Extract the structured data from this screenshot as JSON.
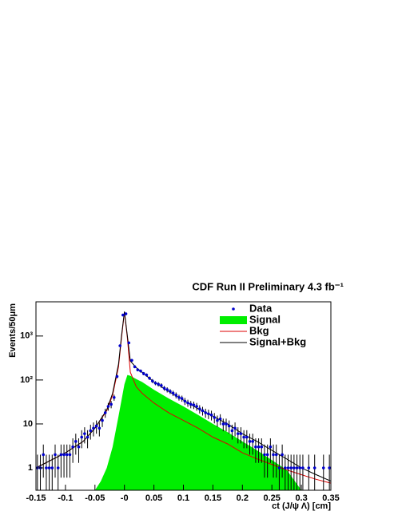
{
  "chart_data": {
    "type": "line",
    "title": "CDF Run II Preliminary 4.3 fb⁻¹",
    "x_label": "ct (J/ψ Λ) [cm]",
    "y_label": "Events/50μm",
    "log_y": true,
    "legend": "top-right",
    "xlim": [
      -0.15,
      0.35
    ],
    "xticks": [
      -0.15,
      -0.1,
      -0.05,
      {
        "value": 0,
        "label": "-0"
      },
      0.05,
      0.1,
      0.15,
      0.2,
      0.25,
      0.3,
      0.35
    ],
    "ylim": [
      0.31,
      6000
    ],
    "yticks": [
      1,
      10,
      {
        "value": 100,
        "label": "10²"
      },
      {
        "value": 1000,
        "label": "10³"
      }
    ],
    "series": [
      {
        "name": "Data",
        "kind": "points",
        "color": "#0000cc",
        "x": [
          -0.1475,
          -0.1425,
          -0.1375,
          -0.1325,
          -0.1275,
          -0.1225,
          -0.1175,
          -0.1125,
          -0.1075,
          -0.1025,
          -0.0975,
          -0.0925,
          -0.0875,
          -0.0825,
          -0.0775,
          -0.0725,
          -0.0675,
          -0.0625,
          -0.0575,
          -0.0525,
          -0.0475,
          -0.0425,
          -0.0375,
          -0.0325,
          -0.0275,
          -0.0225,
          -0.0175,
          -0.0125,
          -0.0075,
          -0.0025,
          0.0025,
          0.0075,
          0.0125,
          0.0175,
          0.0225,
          0.0275,
          0.0325,
          0.0375,
          0.0425,
          0.0475,
          0.0525,
          0.0575,
          0.0625,
          0.0675,
          0.0725,
          0.0775,
          0.0825,
          0.0875,
          0.0925,
          0.0975,
          0.1025,
          0.1075,
          0.1125,
          0.1175,
          0.1225,
          0.1275,
          0.1325,
          0.1375,
          0.1425,
          0.1475,
          0.1525,
          0.1575,
          0.1625,
          0.1675,
          0.1725,
          0.1775,
          0.1825,
          0.1875,
          0.1925,
          0.1975,
          0.2025,
          0.2075,
          0.2125,
          0.2175,
          0.2225,
          0.2275,
          0.2325,
          0.2375,
          0.2425,
          0.2475,
          0.2525,
          0.2575,
          0.2625,
          0.2675,
          0.2725,
          0.2775,
          0.2825,
          0.2875,
          0.2925,
          0.2975,
          0.3025,
          0.3075,
          0.3125,
          0.3175,
          0.3225,
          0.3275,
          0.3325,
          0.3375,
          0.3425,
          0.3475
        ],
        "values": [
          1,
          1,
          2,
          1,
          1,
          1,
          2,
          1,
          2,
          2,
          2,
          2,
          3,
          4,
          3,
          5,
          6,
          5,
          7,
          8,
          9,
          8,
          12,
          18,
          25,
          28,
          40,
          120,
          600,
          3000,
          3200,
          700,
          280,
          200,
          170,
          160,
          140,
          130,
          110,
          95,
          85,
          80,
          75,
          65,
          60,
          55,
          50,
          45,
          40,
          38,
          33,
          30,
          28,
          27,
          25,
          22,
          20,
          18,
          17,
          16,
          14,
          12,
          13,
          10,
          10,
          9,
          7,
          8,
          6,
          6,
          5,
          5,
          4,
          4,
          3,
          3,
          3,
          2,
          2,
          3,
          2,
          2,
          1,
          2,
          1,
          1,
          1,
          1,
          1,
          1,
          1,
          null,
          1,
          null,
          1,
          null,
          null,
          1,
          null,
          1
        ],
        "errors": [
          1,
          1,
          1.4,
          1,
          1,
          1,
          1.4,
          1,
          1.4,
          1.4,
          1.4,
          1.4,
          1.7,
          2,
          1.7,
          2.2,
          2.4,
          2.2,
          2.6,
          2.8,
          3,
          2.8,
          3.5,
          4.2,
          5,
          5.3,
          6.3,
          11,
          24,
          55,
          57,
          26,
          17,
          14,
          13,
          13,
          12,
          11,
          10,
          10,
          9,
          9,
          9,
          8,
          8,
          7,
          7,
          7,
          6,
          6,
          6,
          5.5,
          5.3,
          5.2,
          5,
          4.7,
          4.5,
          4.2,
          4.1,
          4,
          3.7,
          3.5,
          3.6,
          3.2,
          3.2,
          3,
          2.6,
          2.8,
          2.4,
          2.4,
          2.2,
          2.2,
          2,
          2,
          1.7,
          1.7,
          1.7,
          1.4,
          1.4,
          1.7,
          1.4,
          1.4,
          1,
          1.4,
          1,
          1,
          1,
          1,
          1,
          1,
          1,
          null,
          1,
          null,
          1,
          null,
          null,
          1,
          null,
          1
        ]
      },
      {
        "name": "Signal",
        "kind": "area",
        "color": "#00ee00",
        "x": [
          -0.05,
          -0.04,
          -0.03,
          -0.02,
          -0.01,
          0,
          0.005,
          0.01,
          0.02,
          0.03,
          0.05,
          0.075,
          0.1,
          0.125,
          0.15,
          0.175,
          0.2,
          0.225,
          0.25,
          0.275,
          0.3
        ],
        "values": [
          0.31,
          0.5,
          1,
          3,
          15,
          80,
          130,
          125,
          105,
          90,
          60,
          38,
          25,
          16,
          10,
          6.5,
          4,
          2.5,
          1.5,
          0.9,
          0.31
        ]
      },
      {
        "name": "Bkg",
        "kind": "line",
        "color": "#dd0000",
        "x": [
          -0.15,
          -0.1,
          -0.07,
          -0.05,
          -0.03,
          -0.02,
          -0.01,
          -0.005,
          0,
          0.005,
          0.01,
          0.02,
          0.03,
          0.05,
          0.075,
          0.1,
          0.125,
          0.15,
          0.175,
          0.2,
          0.225,
          0.25,
          0.275,
          0.3,
          0.325,
          0.35
        ],
        "values": [
          1,
          2.2,
          4,
          8,
          20,
          45,
          200,
          900,
          3500,
          900,
          150,
          70,
          50,
          30,
          18,
          12,
          8,
          5,
          3.5,
          2.2,
          1.6,
          1.2,
          0.9,
          0.7,
          0.55,
          0.45
        ]
      },
      {
        "name": "Signal+Bkg",
        "kind": "line",
        "color": "#000000",
        "x": [
          -0.15,
          -0.1,
          -0.07,
          -0.05,
          -0.03,
          -0.02,
          -0.01,
          -0.005,
          0,
          0.005,
          0.01,
          0.02,
          0.03,
          0.05,
          0.075,
          0.1,
          0.125,
          0.15,
          0.175,
          0.2,
          0.225,
          0.25,
          0.275,
          0.3,
          0.325,
          0.35
        ],
        "values": [
          1,
          2.2,
          4,
          8,
          21,
          50,
          230,
          1000,
          3600,
          1000,
          270,
          190,
          150,
          90,
          55,
          35,
          22,
          15,
          10,
          6,
          4,
          2.5,
          1.6,
          1,
          0.7,
          0.5
        ]
      }
    ]
  }
}
